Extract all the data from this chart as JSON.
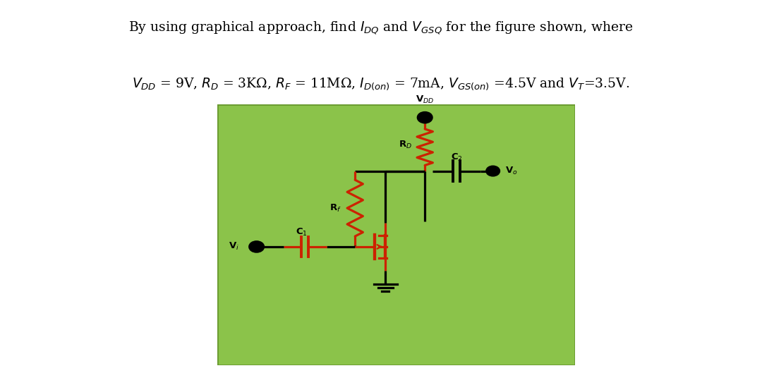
{
  "title_line1": "By using graphical approach, find $I_{DQ}$ and $V_{GSQ}$ for the figure shown, where",
  "title_line2": "$V_{DD}$ = 9V, $R_D$ = 3KΩ, $R_F$ = 11MΩ, $I_{D(on)}$ = 7mA, $V_{GS(on)}$ =4.5V and $V_T$=3.5V.",
  "bg_color": "#8bc34a",
  "border_color": "#6a9a30",
  "text_color": "#000000",
  "red_color": "#cc2200",
  "fig_bg": "#ffffff",
  "figsize": [
    10.8,
    5.29
  ],
  "dpi": 100
}
